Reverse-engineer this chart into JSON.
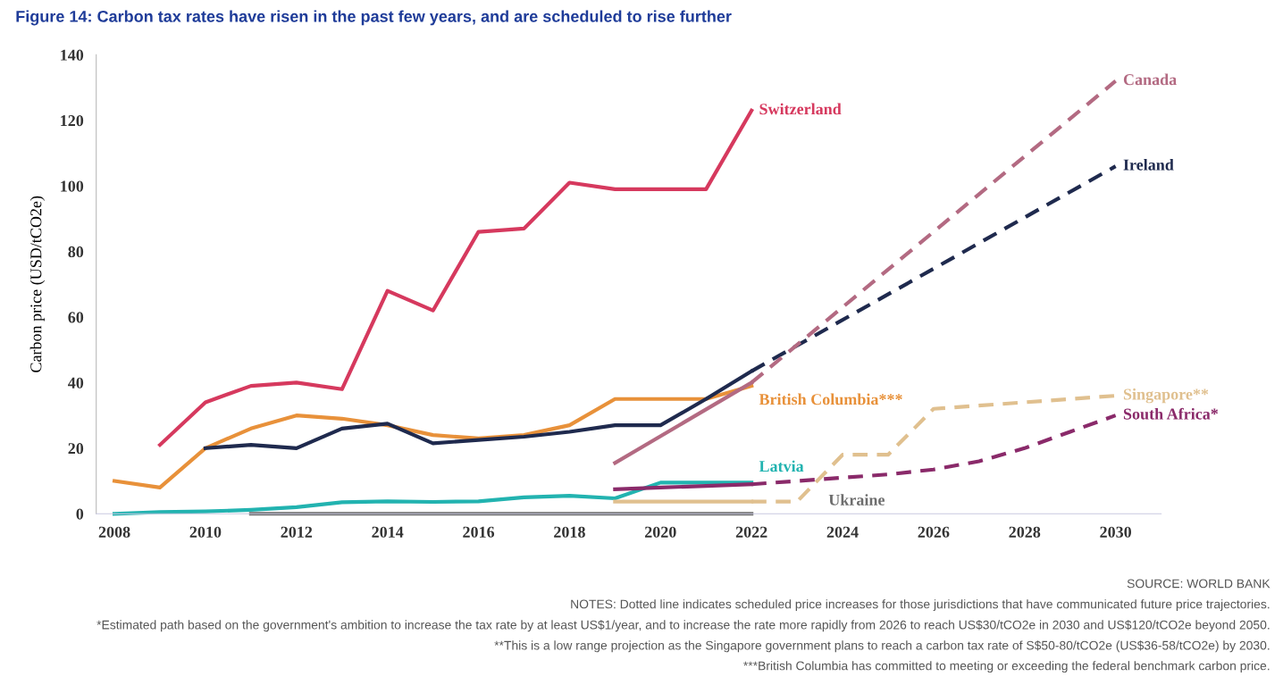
{
  "chart_data": {
    "type": "line",
    "title": "Figure 14: Carbon tax rates have risen in the past few years, and are scheduled to rise further",
    "ylabel": "Carbon price (USD/tCO2e)",
    "xlim": [
      2007.6,
      2031
    ],
    "xticks": [
      2008,
      2010,
      2012,
      2014,
      2016,
      2018,
      2020,
      2022,
      2024,
      2026,
      2028,
      2030
    ],
    "ylim": [
      0,
      140
    ],
    "yticks": [
      0,
      20,
      40,
      60,
      80,
      100,
      120,
      140
    ],
    "grid": false,
    "legend": false,
    "marker": "none",
    "series": [
      {
        "name": "Switzerland",
        "color": "#d6395e",
        "line_style": "solid",
        "x": [
          2009,
          2010,
          2011,
          2012,
          2013,
          2014,
          2015,
          2016,
          2017,
          2018,
          2019,
          2020,
          2021,
          2022
        ],
        "values": [
          21,
          34,
          39,
          40,
          38,
          68,
          62,
          86,
          87,
          101,
          99,
          99,
          99,
          123
        ]
      },
      {
        "name": "British Columbia***",
        "color": "#e8913a",
        "line_style": "solid",
        "x": [
          2008,
          2009,
          2010,
          2011,
          2012,
          2013,
          2014,
          2015,
          2016,
          2017,
          2018,
          2019,
          2020,
          2021,
          2022
        ],
        "values": [
          10,
          8,
          20,
          26,
          30,
          29,
          27,
          24,
          23,
          24,
          27,
          35,
          35,
          35,
          39
        ]
      },
      {
        "color": "#1f2a4e",
        "line_style": "solid",
        "x": [
          2010,
          2011,
          2012,
          2013,
          2014,
          2015,
          2016,
          2017,
          2018,
          2019,
          2020,
          2021,
          2022
        ],
        "values": [
          20,
          21,
          20,
          26,
          27.5,
          21.5,
          22.5,
          23.5,
          25,
          27,
          27,
          35,
          43.5
        ]
      },
      {
        "name": "Ireland",
        "color": "#1f2a4e",
        "line_style": "dashed",
        "x": [
          2022,
          2030
        ],
        "values": [
          43.5,
          106
        ]
      },
      {
        "color": "#b36a82",
        "line_style": "solid",
        "x": [
          2019,
          2022
        ],
        "values": [
          15.5,
          40
        ]
      },
      {
        "name": "Canada",
        "color": "#b36a82",
        "line_style": "dashed",
        "x": [
          2022,
          2030
        ],
        "values": [
          40,
          132
        ]
      },
      {
        "name": "Latvia",
        "color": "#22b3b0",
        "line_style": "solid",
        "x": [
          2008,
          2009,
          2010,
          2011,
          2012,
          2013,
          2014,
          2015,
          2016,
          2017,
          2018,
          2019,
          2020,
          2021,
          2022
        ],
        "values": [
          0,
          0.5,
          0.7,
          1.2,
          2,
          3.5,
          3.8,
          3.6,
          3.8,
          5,
          5.5,
          4.7,
          9.5,
          9.5,
          9.5
        ]
      },
      {
        "name": "Ukraine",
        "color": "#6d6d6d",
        "line_style": "solid",
        "x": [
          2011,
          2022
        ],
        "values": [
          0,
          0
        ]
      },
      {
        "color": "#e0c08f",
        "line_style": "solid",
        "x": [
          2019,
          2022
        ],
        "values": [
          3.7,
          3.7
        ]
      },
      {
        "name": "Singapore**",
        "color": "#e0c08f",
        "line_style": "dashed",
        "x": [
          2022,
          2023,
          2024,
          2025,
          2026,
          2030
        ],
        "values": [
          3.7,
          3.7,
          18,
          18,
          32,
          36
        ]
      },
      {
        "color": "#8a2a6a",
        "line_style": "solid",
        "x": [
          2019,
          2020,
          2021,
          2022
        ],
        "values": [
          7.5,
          8,
          8.5,
          9
        ]
      },
      {
        "name": "South Africa*",
        "color": "#8a2a6a",
        "line_style": "dashed",
        "x": [
          2022,
          2023,
          2024,
          2025,
          2026,
          2027,
          2028,
          2029,
          2030
        ],
        "values": [
          9,
          10,
          11,
          12,
          13.5,
          16,
          20,
          25,
          30
        ]
      }
    ],
    "annotations": [
      "SOURCE: WORLD BANK",
      "NOTES: Dotted line indicates scheduled price increases for those jurisdictions that have communicated future price trajectories.",
      "*Estimated path based on the government's ambition to increase the tax rate by at least US$1/year, and to increase the rate more rapidly from 2026 to reach US$30/tCO2e in 2030 and US$120/tCO2e beyond 2050.",
      "**This is a low range projection as the Singapore government plans to reach a carbon tax rate of S$50-80/tCO2e (US$36-58/tCO2e) by 2030.",
      "***British Columbia has committed to meeting or exceeding the federal benchmark carbon price."
    ]
  }
}
